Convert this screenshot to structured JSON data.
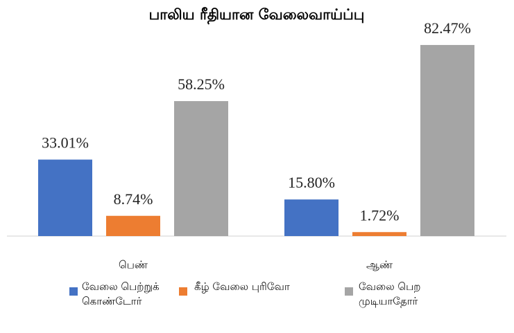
{
  "chart_data": {
    "type": "bar",
    "title": "பாலிய ரீதியான வேலைவாய்ப்பு",
    "categories": [
      "பெண்",
      "ஆண்"
    ],
    "series": [
      {
        "name": "வேலை பெற்றுக் கொண்டோர்",
        "color": "#4472c4",
        "values": [
          33.01,
          15.8
        ],
        "value_labels": [
          "33.01%",
          "15.80%"
        ]
      },
      {
        "name": "கீழ் வேலை புரிவோ",
        "color": "#ed7d31",
        "values": [
          8.74,
          1.72
        ],
        "value_labels": [
          "8.74%",
          "1.72%"
        ]
      },
      {
        "name": "வேலை பெற முடியாதோர்",
        "color": "#a5a5a5",
        "values": [
          58.25,
          82.47
        ],
        "value_labels": [
          "58.25%",
          "82.47%"
        ]
      }
    ],
    "legend": "bottom"
  }
}
